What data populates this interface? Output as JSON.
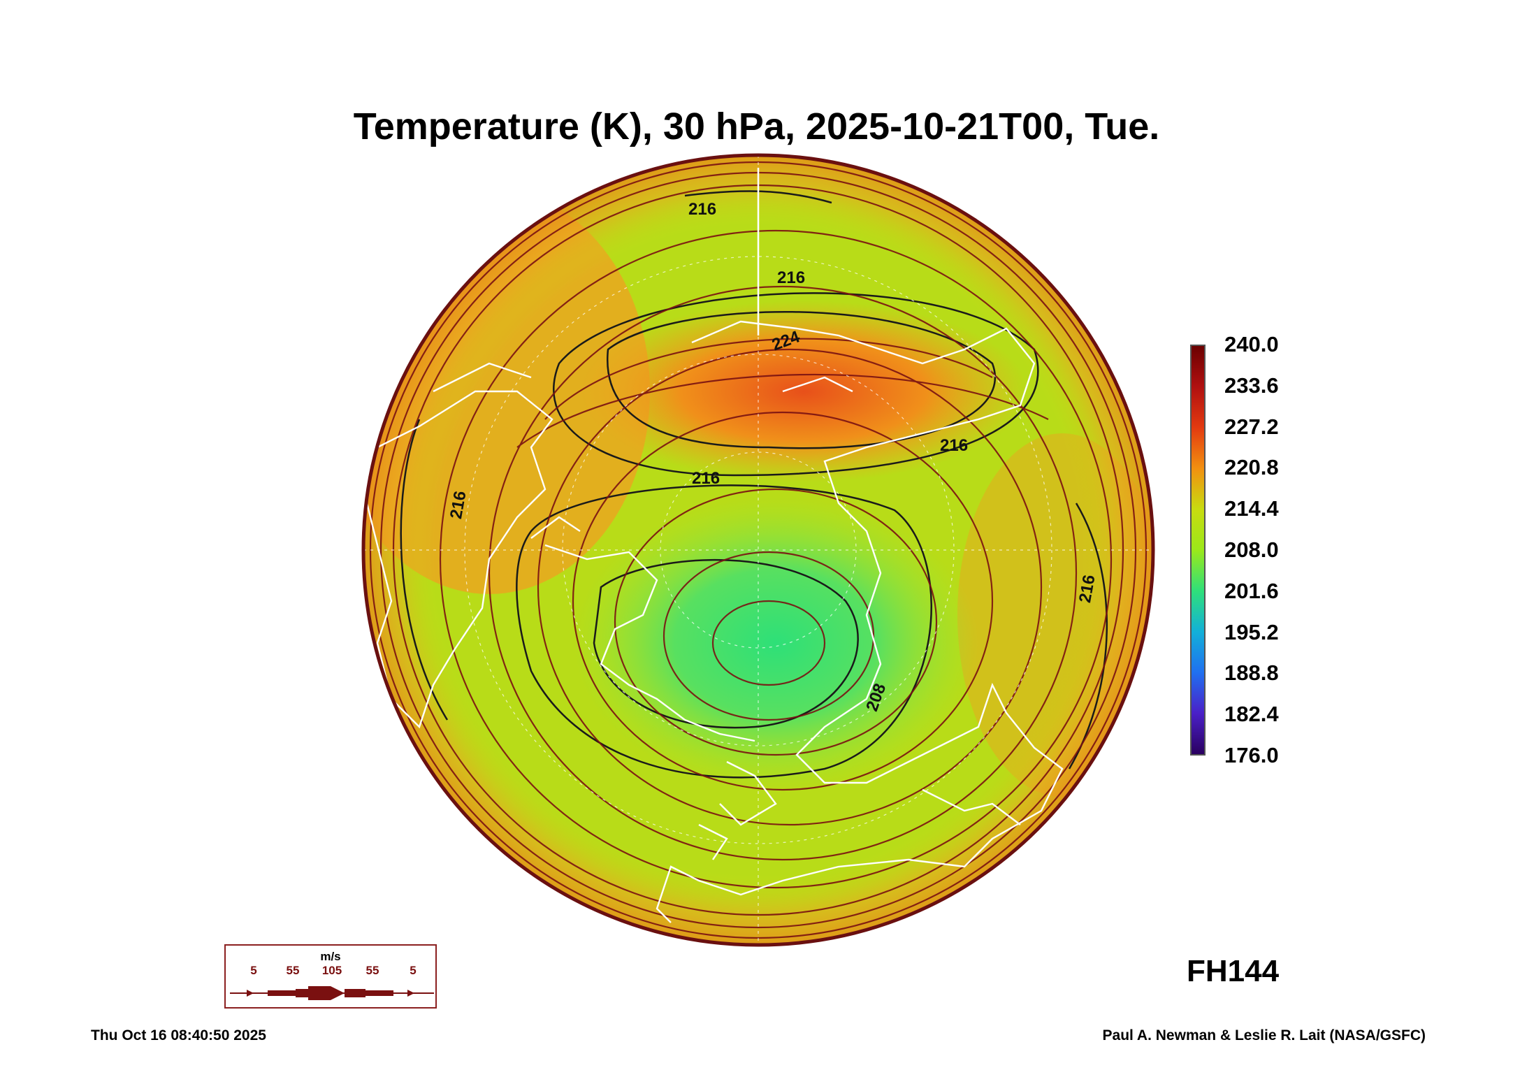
{
  "title": "Temperature (K), 30 hPa, 2025-10-21T00, Tue.",
  "forecast_hour": "FH144",
  "run_time": "Thu Oct 16 08:40:50 2025",
  "credit": "Paul A. Newman & Leslie R. Lait (NASA/GSFC)",
  "colorbar": {
    "labels": [
      "240.0",
      "233.6",
      "227.2",
      "220.8",
      "214.4",
      "208.0",
      "201.6",
      "195.2",
      "188.8",
      "182.4",
      "176.0"
    ],
    "colors": [
      "#6b0000",
      "#b01010",
      "#e33a10",
      "#f29010",
      "#c8dc10",
      "#9be81a",
      "#2fe07a",
      "#12b0d8",
      "#2070f0",
      "#4a20c8",
      "#2a0060"
    ]
  },
  "contour_labels": [
    "216",
    "216",
    "224",
    "216",
    "216",
    "216",
    "216",
    "208"
  ],
  "wind_legend": {
    "unit": "m/s",
    "speeds": [
      "5",
      "55",
      "105",
      "55",
      "5"
    ]
  },
  "colors": {
    "wind_streamline": "#7a1212",
    "coastline": "#ffffff",
    "contour": "#1a1a1a"
  }
}
